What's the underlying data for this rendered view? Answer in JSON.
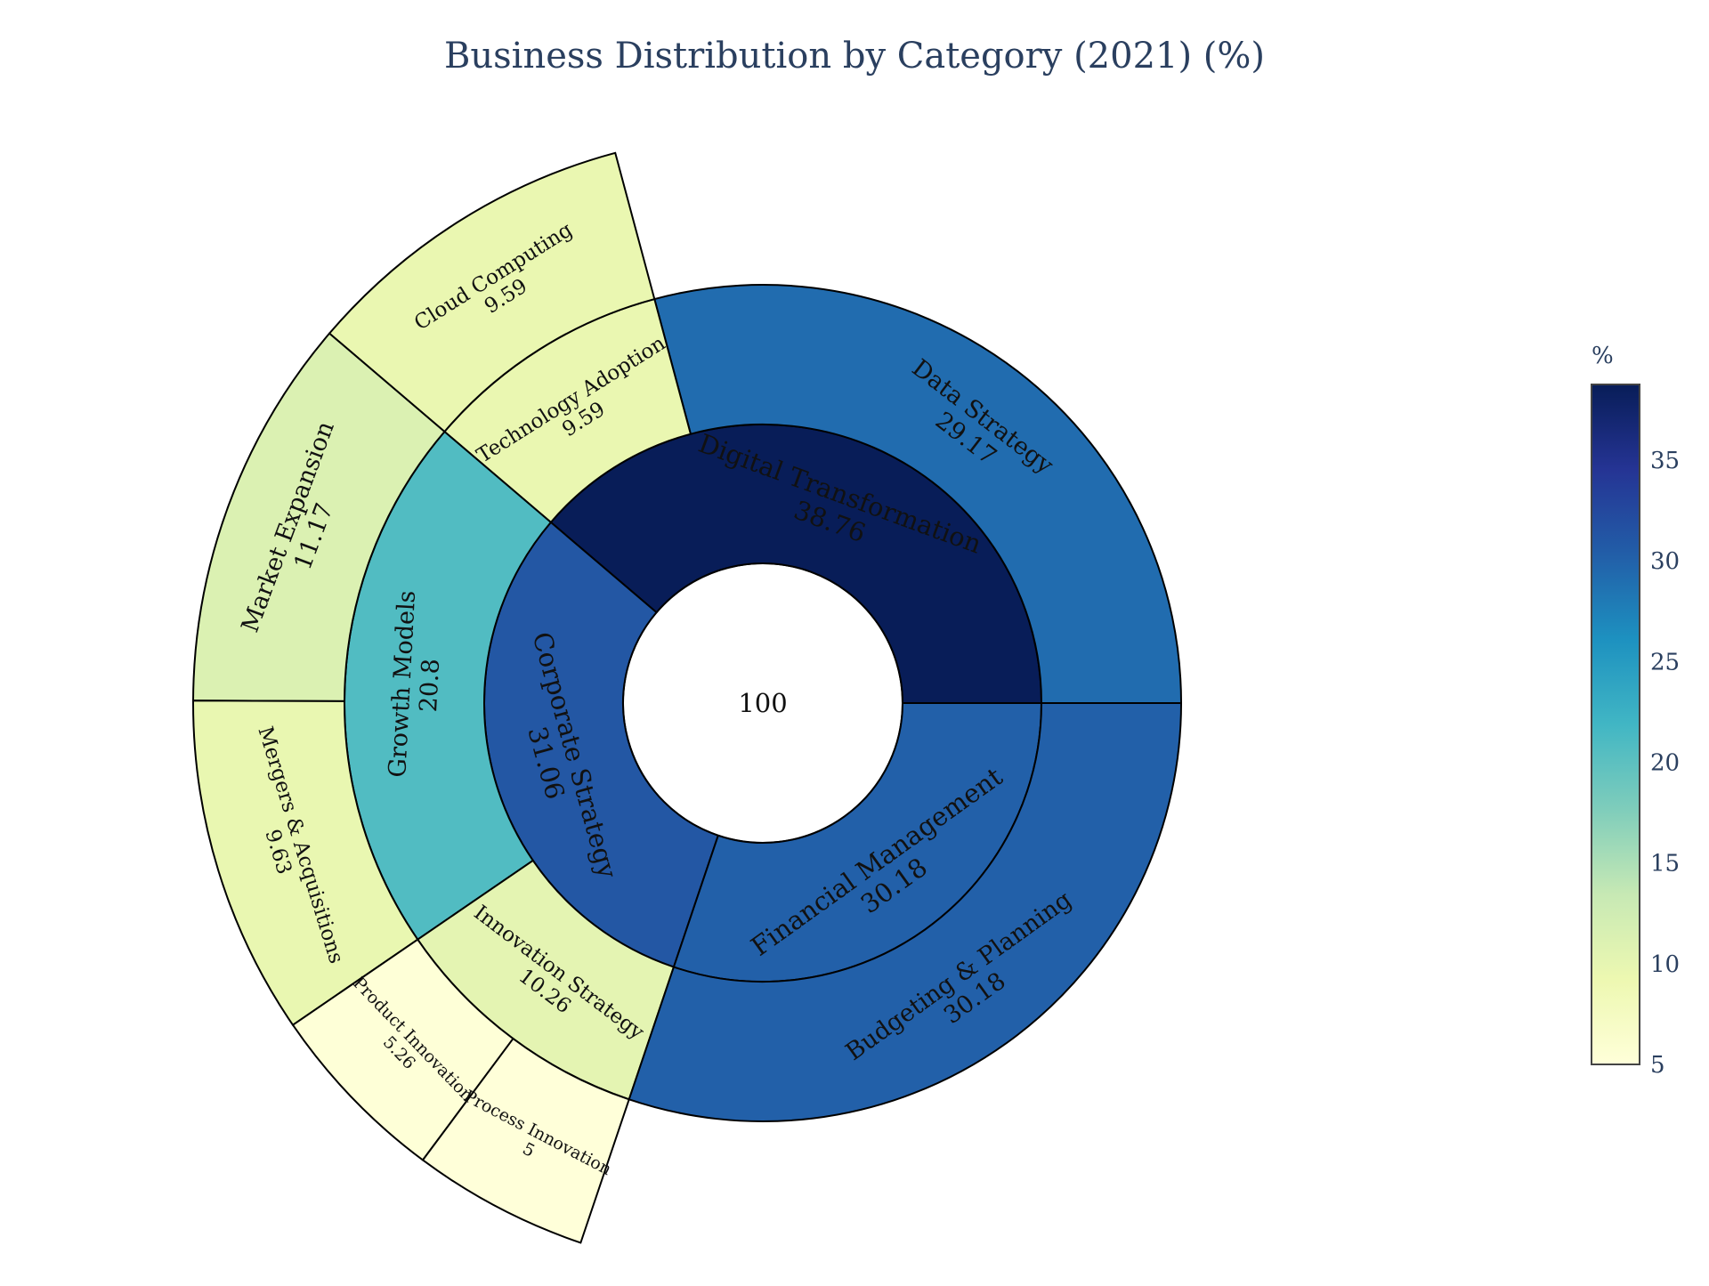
{
  "chart_data": {
    "type": "sunburst",
    "title": "Business Distribution by Category (2021) (%)",
    "center": {
      "label": "100",
      "value": 100
    },
    "start_angle_deg": 0,
    "direction": "counterclockwise",
    "colorscale": [
      "#ffffd9",
      "#edf8b1",
      "#c7e9b4",
      "#7fcdbb",
      "#41b6c4",
      "#1d91c0",
      "#225ea8",
      "#253494",
      "#081d58"
    ],
    "colorbar": {
      "title": "%",
      "min": 5,
      "max": 38.76,
      "ticks": [
        5,
        10,
        15,
        20,
        25,
        30,
        35
      ]
    },
    "hierarchy": [
      {
        "name": "Digital Transformation",
        "value": 38.76,
        "children": [
          {
            "name": "Data Strategy",
            "value": 29.17,
            "children": []
          },
          {
            "name": "Technology Adoption",
            "value": 9.59,
            "children": [
              {
                "name": "Cloud Computing",
                "value": 9.59
              }
            ]
          }
        ]
      },
      {
        "name": "Corporate Strategy",
        "value": 31.06,
        "children": [
          {
            "name": "Growth Models",
            "value": 20.8,
            "children": [
              {
                "name": "Market Expansion",
                "value": 11.17
              },
              {
                "name": "Mergers & Acquisitions",
                "value": 9.63
              }
            ]
          },
          {
            "name": "Innovation Strategy",
            "value": 10.26,
            "children": [
              {
                "name": "Product Innovation",
                "value": 5.26
              },
              {
                "name": "Process Innovation",
                "value": 5
              }
            ]
          }
        ]
      },
      {
        "name": "Financial Management",
        "value": 30.18,
        "children": [
          {
            "name": "Budgeting & Planning",
            "value": 30.18,
            "children": []
          }
        ]
      }
    ]
  }
}
